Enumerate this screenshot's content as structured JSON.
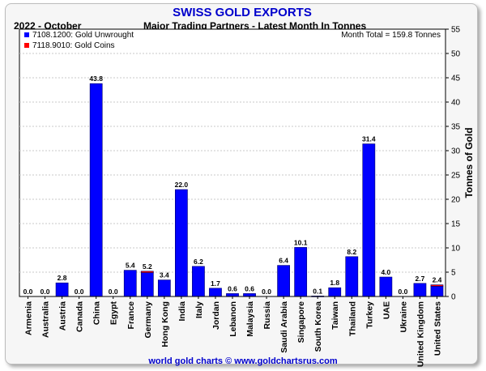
{
  "chart_data": {
    "type": "bar",
    "title": "SWISS GOLD EXPORTS",
    "period": "2022 - October",
    "subtitle": "Major Trading Partners - Latest Month In Tonnes",
    "annotation": "Month Total = 159.8 Tonnes",
    "ylabel": "Tonnes of Gold",
    "xlabel": "",
    "ylim": [
      0,
      55
    ],
    "yticks": [
      "0",
      "5",
      "10",
      "15",
      "20",
      "25",
      "30",
      "35",
      "40",
      "45",
      "50",
      "55"
    ],
    "grid": true,
    "legend_position": "top-left",
    "stacked": true,
    "categories": [
      "Armenia",
      "Australia",
      "Austria",
      "Canada",
      "China",
      "Egypt",
      "France",
      "Germany",
      "Hong Kong",
      "India",
      "Italy",
      "Jordan",
      "Lebanon",
      "Malaysia",
      "Russia",
      "Saudi Arabia",
      "Singapore",
      "South Korea",
      "Taiwan",
      "Thailand",
      "Turkey",
      "UAE",
      "Ukraine",
      "United Kingdom",
      "United States"
    ],
    "totals_labels": [
      "0.0",
      "0.0",
      "2.8",
      "0.0",
      "43.8",
      "0.0",
      "5.4",
      "5.2",
      "3.4",
      "22.0",
      "6.2",
      "1.7",
      "0.6",
      "0.6",
      "0.0",
      "6.4",
      "10.1",
      "0.1",
      "1.8",
      "8.2",
      "31.4",
      "4.0",
      "0.0",
      "2.7",
      "2.4"
    ],
    "series": [
      {
        "name": "7108.1200: Gold Unwrought",
        "color": "#0000ff",
        "values": [
          0.0,
          0.0,
          2.8,
          0.0,
          43.8,
          0.0,
          5.4,
          4.9,
          3.4,
          22.0,
          6.2,
          1.7,
          0.6,
          0.6,
          0.0,
          6.4,
          10.1,
          0.1,
          1.8,
          8.2,
          31.4,
          4.0,
          0.0,
          2.7,
          2.1
        ]
      },
      {
        "name": "7118.9010: Gold Coins",
        "color": "#ff0000",
        "values": [
          0,
          0,
          0,
          0,
          0,
          0,
          0,
          0.3,
          0,
          0,
          0,
          0,
          0,
          0,
          0,
          0,
          0,
          0,
          0,
          0,
          0,
          0,
          0,
          0,
          0.3
        ]
      }
    ]
  },
  "footer": "world gold charts © www.goldchartsrus.com"
}
